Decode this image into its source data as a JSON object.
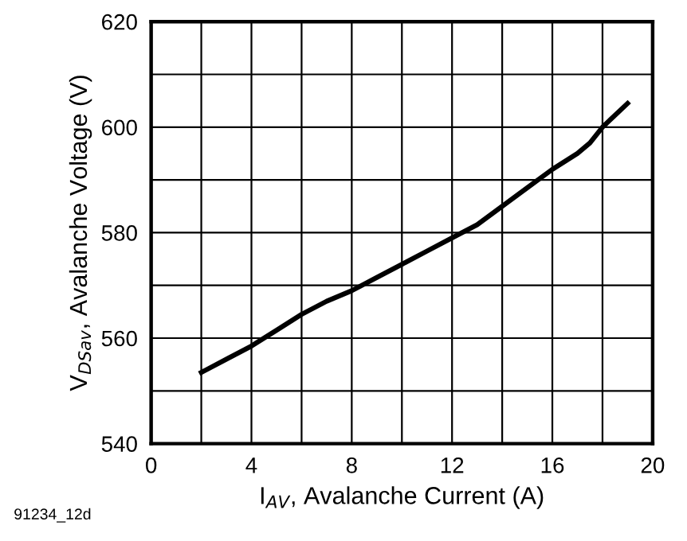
{
  "chart_data": {
    "type": "line",
    "xlabel": "I$_{AV}$, Avalanche Current (A)",
    "ylabel": "V$_{DSav}$, Avalanche Voltage (V)",
    "annotations": [
      "91234_12d"
    ],
    "x": [
      2,
      3,
      4,
      5,
      6,
      7,
      8,
      9,
      10,
      11,
      12,
      13,
      14,
      15,
      16,
      17,
      17.5,
      18,
      19
    ],
    "series": [
      {
        "color": "#000000",
        "values": [
          553.5,
          556,
          558.5,
          561.5,
          564.5,
          567,
          569,
          571.5,
          574,
          576.5,
          579,
          581.5,
          585,
          588.5,
          592,
          595,
          597,
          600,
          604.5
        ]
      }
    ],
    "xlim": [
      0,
      20
    ],
    "ylim": [
      540,
      620
    ],
    "xticks": [
      0,
      {
        "value": 2,
        "label": null
      },
      4,
      {
        "value": 6,
        "label": null
      },
      8,
      {
        "value": 10,
        "label": null
      },
      12,
      {
        "value": 14,
        "label": null
      },
      16,
      {
        "value": 18,
        "label": null
      },
      20
    ],
    "yticks": [
      540,
      {
        "value": 550,
        "label": null
      },
      560,
      {
        "value": 570,
        "label": null
      },
      580,
      {
        "value": 590,
        "label": null
      },
      600,
      {
        "value": 610,
        "label": null
      },
      620
    ],
    "grid": true,
    "legend": false,
    "marker": "none",
    "line_style": "solid"
  }
}
